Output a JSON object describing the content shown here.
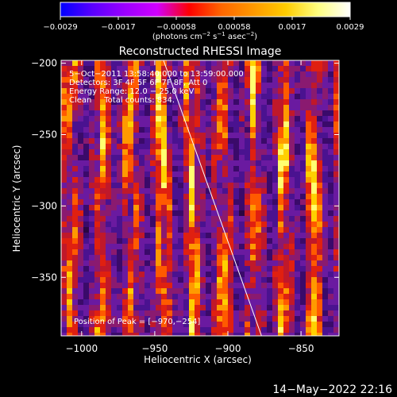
{
  "chart_data": {
    "type": "heatmap",
    "title": "Reconstructed RHESSI Image",
    "xlabel": "Heliocentric X (arcsec)",
    "ylabel": "Heliocentric Y (arcsec)",
    "xlim": [
      -1014,
      -824
    ],
    "ylim": [
      -391,
      -198
    ],
    "x_ticks": [
      -1000,
      -950,
      -900,
      -850
    ],
    "x_tick_labels": [
      "−1000",
      "−950",
      "−900",
      "−850"
    ],
    "y_ticks": [
      -200,
      -250,
      -300,
      -350
    ],
    "y_tick_labels": [
      "−200",
      "−250",
      "−300",
      "−350"
    ],
    "colorbar": {
      "min": -0.0029,
      "max": 0.0029,
      "tick_labels": [
        "−0.0029",
        "−0.0017",
        "−0.00058",
        "0.00058",
        "0.0017",
        "0.0029"
      ],
      "unit_label_parts": [
        "(photons cm",
        "−2",
        " s",
        "−1",
        " asec",
        "−2",
        ")"
      ],
      "colors": [
        "#0000ff",
        "#5a00ff",
        "#9b00ff",
        "#d000ff",
        "#ff0000",
        "#ff6600",
        "#ff9900",
        "#ffcc00",
        "#ffff80",
        "#ffffff"
      ]
    },
    "info_lines": [
      "5−Oct−2011 13:58:40.000 to 13:59:00.000",
      "Detectors: 3F 4F 5F 6F 7F 8F, Att 0",
      "Energy Range: 12.0 − 25.0 keV",
      "Clean     Total counts: 834."
    ],
    "peak_label": "Position of Peak = [−970,−254]",
    "peak": [
      -970,
      -254
    ],
    "limb_line": [
      [
        -944,
        -198
      ],
      [
        -877,
        -391
      ]
    ]
  },
  "timestamp": "14−May−2022 22:16"
}
